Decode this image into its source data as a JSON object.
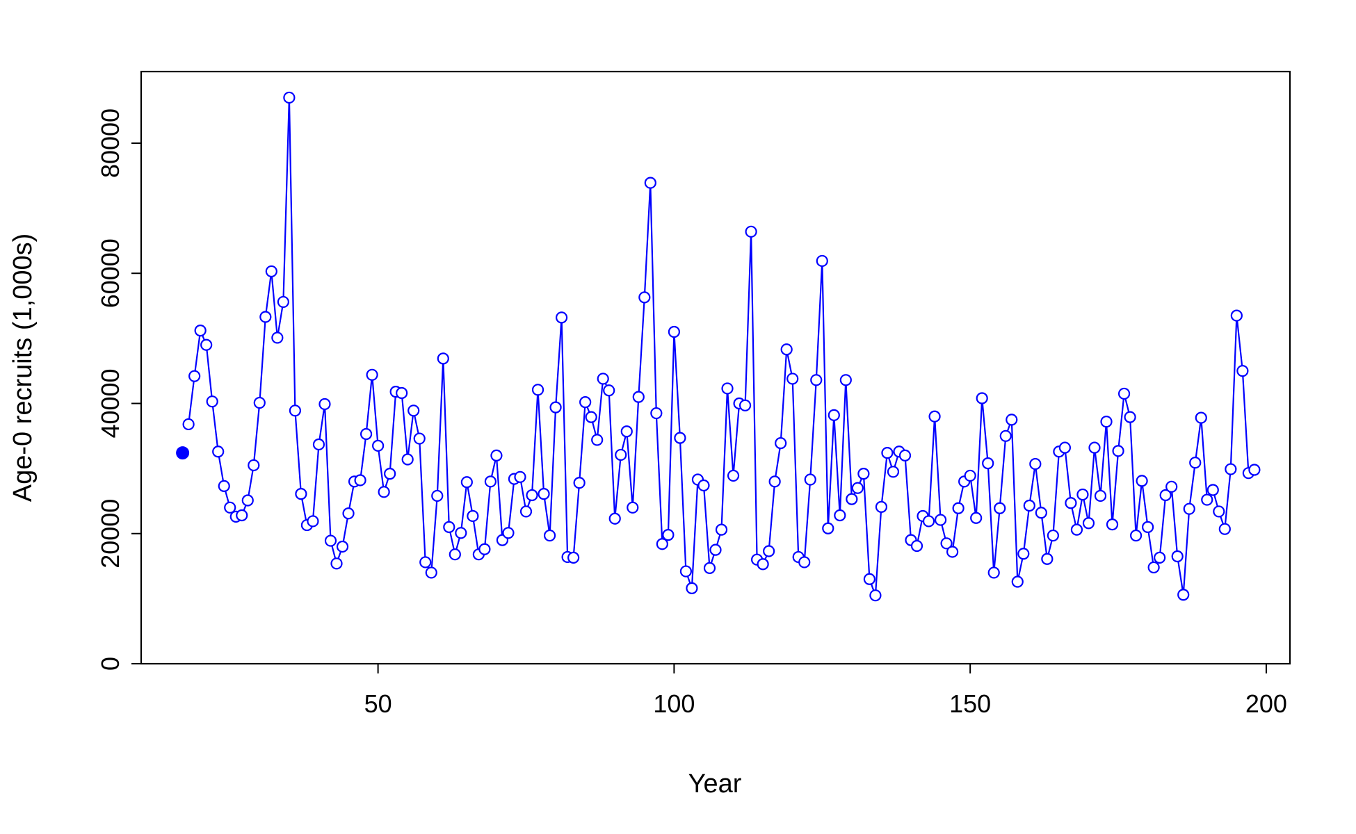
{
  "chart_data": {
    "type": "line",
    "xlabel": "Year",
    "ylabel": "Age-0 recruits (1,000s)",
    "xlim": [
      10,
      204
    ],
    "ylim": [
      0,
      91000
    ],
    "xticks": [
      50,
      100,
      150,
      200
    ],
    "yticks": [
      0,
      20000,
      40000,
      60000,
      80000
    ],
    "xtick_labels": [
      "50",
      "100",
      "150",
      "200"
    ],
    "ytick_labels": [
      "0",
      "20000",
      "40000",
      "60000",
      "80000"
    ],
    "color": "#0000ff",
    "grid": false,
    "initial_point": {
      "x": 17,
      "y": 32400
    },
    "series": [
      {
        "x_start": 18,
        "values": [
          36800,
          44200,
          51200,
          49000,
          40300,
          32600,
          27300,
          24000,
          22600,
          22800,
          25100,
          30500,
          40100,
          53300,
          60300,
          50100,
          55600,
          87000,
          38900,
          26100,
          21300,
          21900,
          33700,
          39900,
          18900,
          15400,
          18000,
          23100,
          28000,
          28200,
          35300,
          44400,
          33500,
          26400,
          29200,
          41800,
          41600,
          31400,
          38900,
          34600,
          15600,
          14000,
          25800,
          46900,
          21000,
          16800,
          20100,
          27900,
          22700,
          16800,
          17600,
          28000,
          32000,
          19000,
          20100,
          28400,
          28700,
          23400,
          25900,
          42100,
          26100,
          19700,
          39400,
          53200,
          16400,
          16300,
          27800,
          40200,
          37900,
          34400,
          43800,
          42000,
          22300,
          32100,
          35700,
          24000,
          41000,
          56300,
          73900,
          38500,
          18400,
          19800,
          51000,
          34700,
          14200,
          11600,
          28300,
          27400,
          14700,
          17500,
          20600,
          42300,
          28900,
          40000,
          39700,
          66400,
          16000,
          15300,
          17300,
          28000,
          33900,
          48300,
          43800,
          16400,
          15600,
          28300,
          43600,
          61900,
          20800,
          38200,
          22800,
          43600,
          25300,
          27000,
          29200,
          13000,
          10500,
          24100,
          32400,
          29500,
          32600,
          32000,
          19000,
          18100,
          22700,
          21900,
          38000,
          22100,
          18500,
          17200,
          23900,
          28000,
          28900,
          22400,
          40800,
          30800,
          14000,
          23900,
          35000,
          37500,
          12600,
          16900,
          24300,
          30700,
          23200,
          16100,
          19700,
          32600,
          33200,
          24700,
          20600,
          26000,
          21600,
          33200,
          25800,
          37200,
          21400,
          32700,
          41500,
          37900,
          19700,
          28100,
          21000,
          14800,
          16300,
          25900,
          27200,
          16500,
          10600,
          23800,
          30900,
          37800,
          25200,
          26700,
          23400,
          20700,
          29900,
          53500,
          45000,
          29300,
          29800
        ]
      }
    ]
  }
}
